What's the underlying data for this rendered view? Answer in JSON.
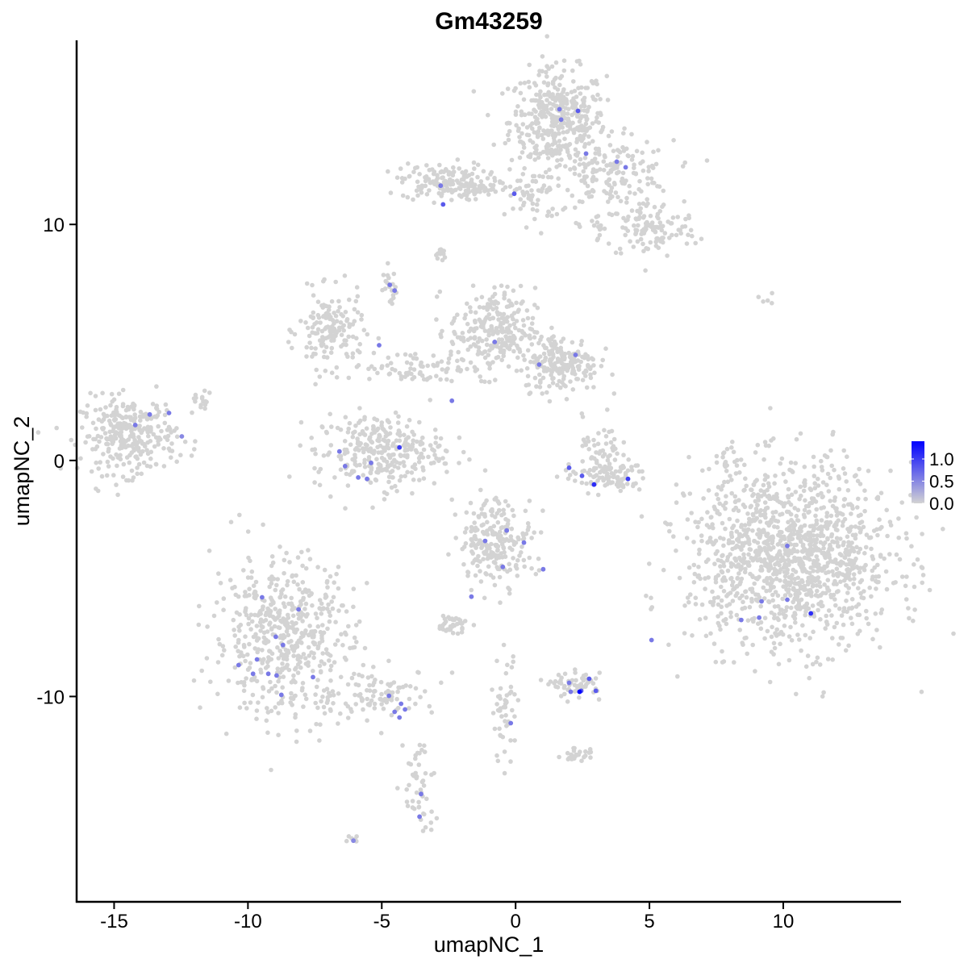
{
  "chart_data": {
    "type": "scatter",
    "title": "Gm43259",
    "xlabel": "umapNC_1",
    "ylabel": "umapNC_2",
    "xlim": [
      -16.4,
      14.4
    ],
    "ylim": [
      -18.7,
      17.8
    ],
    "xticks": [
      -15,
      -10,
      -5,
      0,
      5,
      10
    ],
    "xtick_labels": [
      "-15",
      "-10",
      "-5",
      "0",
      "5",
      "10"
    ],
    "yticks": [
      -10,
      0,
      10
    ],
    "ytick_labels": [
      "-10",
      "0",
      "10"
    ],
    "grid": false,
    "legend": {
      "placement": "right",
      "type": "colorbar",
      "min": 0.0,
      "max": 1.4,
      "ticks": [
        0.0,
        0.5,
        1.0
      ],
      "tick_labels": [
        "0.0",
        "0.5",
        "1.0"
      ],
      "low_color": "#d3d3d3",
      "high_color": "#0000ff"
    },
    "background_color": "#d3d3d3",
    "background_clusters_note_fields": [
      "center_x",
      "center_y",
      "sd_x",
      "sd_y",
      "count"
    ],
    "background_clusters": [
      [
        1.57,
        14.37,
        0.9,
        1.1,
        420
      ],
      [
        3.68,
        12.15,
        1.1,
        0.7,
        160
      ],
      [
        5.02,
        9.76,
        0.9,
        0.6,
        120
      ],
      [
        -2.68,
        11.81,
        0.8,
        0.4,
        150
      ],
      [
        -1.17,
        11.5,
        0.7,
        0.15,
        40
      ],
      [
        0.7,
        11.2,
        0.5,
        0.6,
        50
      ],
      [
        -14.45,
        1.06,
        0.9,
        0.8,
        300
      ],
      [
        -6.9,
        5.5,
        0.6,
        0.8,
        150
      ],
      [
        -3.6,
        3.96,
        1.4,
        0.35,
        80
      ],
      [
        -0.87,
        5.5,
        0.8,
        0.9,
        250
      ],
      [
        1.7,
        4.13,
        0.7,
        0.6,
        200
      ],
      [
        -5.1,
        0.38,
        1.2,
        0.8,
        300
      ],
      [
        3.36,
        -0.65,
        0.8,
        0.35,
        100
      ],
      [
        3.2,
        0.72,
        0.35,
        0.6,
        40
      ],
      [
        10.3,
        -4.06,
        1.9,
        1.9,
        1300
      ],
      [
        -0.72,
        -3.38,
        0.7,
        0.9,
        220
      ],
      [
        -8.7,
        -7.47,
        1.3,
        1.7,
        520
      ],
      [
        -5.1,
        -9.86,
        1.1,
        0.5,
        100
      ],
      [
        -3.6,
        -13.96,
        0.3,
        1.2,
        50
      ],
      [
        2.3,
        -9.52,
        0.45,
        0.25,
        60
      ],
      [
        -2.38,
        -6.96,
        0.3,
        0.2,
        40
      ],
      [
        -0.42,
        -10.55,
        0.25,
        1.1,
        50
      ],
      [
        2.3,
        -12.5,
        0.3,
        0.15,
        25
      ],
      [
        7.89,
        -0.14,
        0.15,
        0.5,
        20
      ],
      [
        -4.73,
        7.37,
        0.15,
        0.35,
        20
      ],
      [
        -2.8,
        8.74,
        0.12,
        0.17,
        15
      ],
      [
        -11.7,
        2.6,
        0.25,
        0.2,
        15
      ],
      [
        3.0,
        9.93,
        0.25,
        0.17,
        10
      ],
      [
        -6.06,
        -16.1,
        0.15,
        0.1,
        8
      ],
      [
        9.4,
        6.76,
        0.15,
        0.1,
        5
      ]
    ],
    "expressing_cells_fields": [
      "x",
      "y",
      "value"
    ],
    "expressing_cells": [
      [
        -14.21,
        1.5,
        0.6
      ],
      [
        -13.67,
        1.95,
        0.6
      ],
      [
        -12.95,
        2.01,
        0.6
      ],
      [
        -12.47,
        1.02,
        0.5
      ],
      [
        -2.8,
        11.64,
        0.6
      ],
      [
        -2.71,
        10.85,
        0.8
      ],
      [
        -0.05,
        11.3,
        0.8
      ],
      [
        1.64,
        14.88,
        0.6
      ],
      [
        2.33,
        14.81,
        0.8
      ],
      [
        1.7,
        14.44,
        0.6
      ],
      [
        2.63,
        13.0,
        0.6
      ],
      [
        3.78,
        12.66,
        0.6
      ],
      [
        4.11,
        12.42,
        0.6
      ],
      [
        -4.7,
        7.44,
        0.6
      ],
      [
        -4.52,
        7.2,
        0.6
      ],
      [
        -5.1,
        4.88,
        0.6
      ],
      [
        -0.78,
        5.02,
        0.6
      ],
      [
        0.88,
        4.06,
        0.6
      ],
      [
        2.24,
        4.47,
        0.6
      ],
      [
        -2.38,
        2.53,
        0.6
      ],
      [
        -4.34,
        0.55,
        1.0
      ],
      [
        -6.58,
        0.38,
        0.6
      ],
      [
        -6.37,
        -0.24,
        0.6
      ],
      [
        -5.4,
        -0.1,
        0.6
      ],
      [
        -5.88,
        -0.72,
        0.6
      ],
      [
        -5.55,
        -0.78,
        0.6
      ],
      [
        2.0,
        -0.31,
        0.8
      ],
      [
        2.48,
        -0.65,
        0.8
      ],
      [
        2.93,
        -1.02,
        1.1
      ],
      [
        4.2,
        -0.78,
        1.0
      ],
      [
        -1.14,
        -3.41,
        0.6
      ],
      [
        -0.33,
        -2.97,
        0.6
      ],
      [
        0.31,
        -3.48,
        0.6
      ],
      [
        -0.48,
        -4.51,
        0.6
      ],
      [
        1.03,
        -4.61,
        0.6
      ],
      [
        -1.65,
        -5.77,
        0.6
      ],
      [
        -9.47,
        -5.8,
        0.6
      ],
      [
        -8.96,
        -7.47,
        0.6
      ],
      [
        -8.11,
        -6.31,
        0.6
      ],
      [
        -8.69,
        -7.82,
        0.6
      ],
      [
        -10.35,
        -8.67,
        0.6
      ],
      [
        -9.66,
        -8.43,
        0.6
      ],
      [
        -9.24,
        -9.04,
        0.6
      ],
      [
        -9.81,
        -9.04,
        0.6
      ],
      [
        -8.93,
        -9.11,
        0.6
      ],
      [
        -7.57,
        -9.18,
        0.6
      ],
      [
        -8.75,
        -9.93,
        0.6
      ],
      [
        -4.73,
        -9.97,
        0.6
      ],
      [
        -4.28,
        -10.31,
        0.6
      ],
      [
        -4.52,
        -10.65,
        0.6
      ],
      [
        -4.13,
        -10.55,
        0.6
      ],
      [
        -4.34,
        -10.89,
        0.6
      ],
      [
        2.0,
        -9.42,
        0.6
      ],
      [
        2.45,
        -9.76,
        0.8
      ],
      [
        2.75,
        -9.25,
        0.8
      ],
      [
        2.06,
        -9.8,
        0.6
      ],
      [
        3.0,
        -9.76,
        0.8
      ],
      [
        2.39,
        -9.8,
        1.4
      ],
      [
        -0.18,
        -11.13,
        0.6
      ],
      [
        -3.53,
        -14.13,
        0.6
      ],
      [
        -3.59,
        -15.09,
        0.6
      ],
      [
        -6.06,
        -16.11,
        0.5
      ],
      [
        5.08,
        -7.61,
        0.6
      ],
      [
        8.43,
        -6.76,
        0.6
      ],
      [
        9.19,
        -5.97,
        0.6
      ],
      [
        9.1,
        -6.66,
        0.6
      ],
      [
        10.15,
        -3.62,
        0.6
      ],
      [
        10.15,
        -5.9,
        0.6
      ],
      [
        11.03,
        -6.48,
        1.1
      ]
    ]
  }
}
